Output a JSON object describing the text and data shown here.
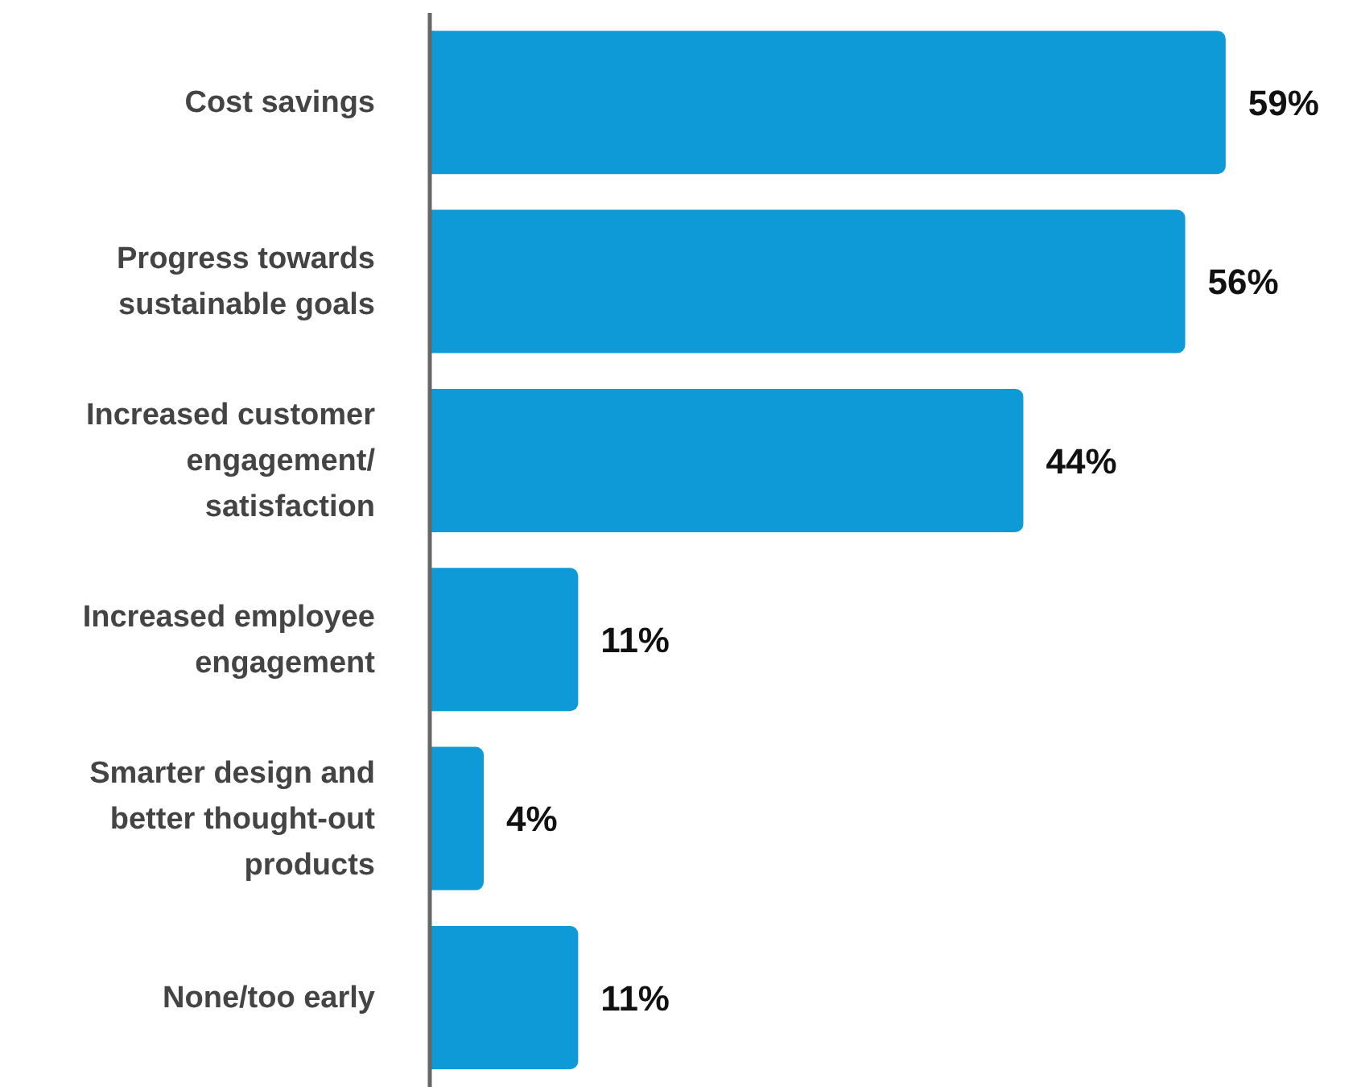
{
  "chart_data": {
    "type": "bar",
    "orientation": "horizontal",
    "categories": [
      "Cost savings",
      "Progress towards sustainable goals",
      "Increased customer engagement/satisfaction",
      "Increased employee engagement",
      "Smarter design and better thought-out products",
      "None/too early"
    ],
    "values": [
      59,
      56,
      44,
      11,
      4,
      11
    ],
    "value_labels": [
      "59%",
      "56%",
      "44%",
      "11%",
      "4%",
      "11%"
    ],
    "color": "#0e9ad7",
    "grid": false,
    "legend": false
  }
}
